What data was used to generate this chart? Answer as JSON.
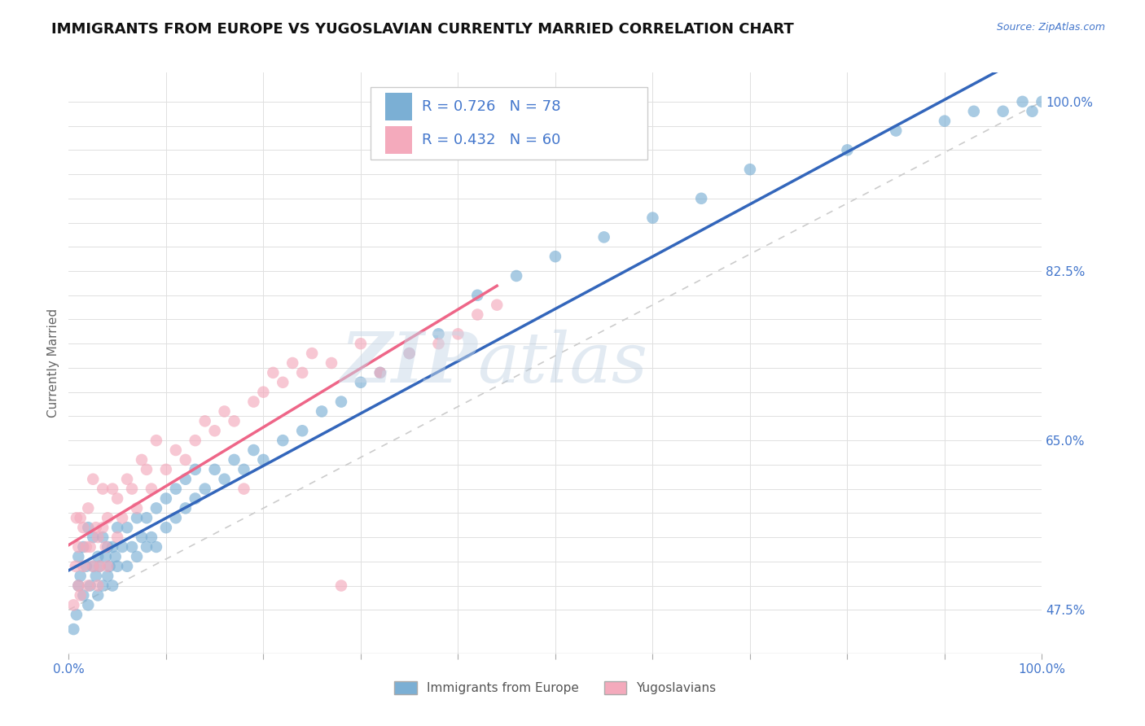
{
  "title": "IMMIGRANTS FROM EUROPE VS YUGOSLAVIAN CURRENTLY MARRIED CORRELATION CHART",
  "source_text": "Source: ZipAtlas.com",
  "ylabel": "Currently Married",
  "blue_color": "#7BAFD4",
  "pink_color": "#F4AABC",
  "blue_line_color": "#3366BB",
  "pink_line_color": "#EE6688",
  "gray_dash_color": "#CCCCCC",
  "legend_R1": "R = 0.726",
  "legend_N1": "N = 78",
  "legend_R2": "R = 0.432",
  "legend_N2": "N = 60",
  "blue_label": "Immigrants from Europe",
  "pink_label": "Yugoslavians",
  "watermark_zip": "ZIP",
  "watermark_atlas": "atlas",
  "blue_scatter_x": [
    0.005,
    0.008,
    0.01,
    0.01,
    0.012,
    0.015,
    0.015,
    0.018,
    0.02,
    0.02,
    0.022,
    0.025,
    0.025,
    0.028,
    0.03,
    0.03,
    0.032,
    0.035,
    0.035,
    0.038,
    0.04,
    0.04,
    0.042,
    0.045,
    0.045,
    0.048,
    0.05,
    0.05,
    0.055,
    0.06,
    0.06,
    0.065,
    0.07,
    0.07,
    0.075,
    0.08,
    0.08,
    0.085,
    0.09,
    0.09,
    0.1,
    0.1,
    0.11,
    0.11,
    0.12,
    0.12,
    0.13,
    0.13,
    0.14,
    0.15,
    0.16,
    0.17,
    0.18,
    0.19,
    0.2,
    0.22,
    0.24,
    0.26,
    0.28,
    0.3,
    0.32,
    0.35,
    0.38,
    0.42,
    0.46,
    0.5,
    0.55,
    0.6,
    0.65,
    0.7,
    0.8,
    0.85,
    0.9,
    0.93,
    0.96,
    0.98,
    0.99,
    1.0
  ],
  "blue_scatter_y": [
    0.455,
    0.47,
    0.5,
    0.53,
    0.51,
    0.49,
    0.54,
    0.52,
    0.48,
    0.56,
    0.5,
    0.52,
    0.55,
    0.51,
    0.49,
    0.53,
    0.52,
    0.5,
    0.55,
    0.53,
    0.51,
    0.54,
    0.52,
    0.54,
    0.5,
    0.53,
    0.52,
    0.56,
    0.54,
    0.52,
    0.56,
    0.54,
    0.53,
    0.57,
    0.55,
    0.54,
    0.57,
    0.55,
    0.54,
    0.58,
    0.56,
    0.59,
    0.57,
    0.6,
    0.58,
    0.61,
    0.59,
    0.62,
    0.6,
    0.62,
    0.61,
    0.63,
    0.62,
    0.64,
    0.63,
    0.65,
    0.66,
    0.68,
    0.69,
    0.71,
    0.72,
    0.74,
    0.76,
    0.8,
    0.82,
    0.84,
    0.86,
    0.88,
    0.9,
    0.93,
    0.95,
    0.97,
    0.98,
    0.99,
    0.99,
    1.0,
    0.99,
    1.0
  ],
  "pink_scatter_x": [
    0.005,
    0.007,
    0.008,
    0.01,
    0.01,
    0.012,
    0.012,
    0.015,
    0.015,
    0.018,
    0.02,
    0.02,
    0.022,
    0.025,
    0.025,
    0.028,
    0.03,
    0.03,
    0.032,
    0.035,
    0.035,
    0.038,
    0.04,
    0.04,
    0.045,
    0.05,
    0.05,
    0.055,
    0.06,
    0.065,
    0.07,
    0.075,
    0.08,
    0.085,
    0.09,
    0.1,
    0.11,
    0.12,
    0.13,
    0.14,
    0.15,
    0.16,
    0.17,
    0.18,
    0.19,
    0.2,
    0.21,
    0.22,
    0.23,
    0.24,
    0.25,
    0.27,
    0.28,
    0.3,
    0.32,
    0.35,
    0.38,
    0.4,
    0.42,
    0.44
  ],
  "pink_scatter_y": [
    0.48,
    0.52,
    0.57,
    0.5,
    0.54,
    0.49,
    0.57,
    0.52,
    0.56,
    0.54,
    0.5,
    0.58,
    0.54,
    0.52,
    0.61,
    0.56,
    0.5,
    0.55,
    0.52,
    0.56,
    0.6,
    0.54,
    0.52,
    0.57,
    0.6,
    0.55,
    0.59,
    0.57,
    0.61,
    0.6,
    0.58,
    0.63,
    0.62,
    0.6,
    0.65,
    0.62,
    0.64,
    0.63,
    0.65,
    0.67,
    0.66,
    0.68,
    0.67,
    0.6,
    0.69,
    0.7,
    0.72,
    0.71,
    0.73,
    0.72,
    0.74,
    0.73,
    0.5,
    0.75,
    0.72,
    0.74,
    0.75,
    0.76,
    0.78,
    0.79
  ],
  "xlim": [
    0.0,
    1.0
  ],
  "ylim": [
    0.43,
    1.03
  ],
  "ytick_vals": [
    0.475,
    0.5,
    0.525,
    0.55,
    0.575,
    0.6,
    0.625,
    0.65,
    0.675,
    0.7,
    0.725,
    0.75,
    0.775,
    0.8,
    0.825,
    0.85,
    0.875,
    0.9,
    0.925,
    0.95,
    0.975,
    1.0
  ],
  "ytick_labeled": {
    "0.475": "47.5%",
    "0.65": "65.0%",
    "0.825": "82.5%",
    "1.0": "100.0%"
  }
}
